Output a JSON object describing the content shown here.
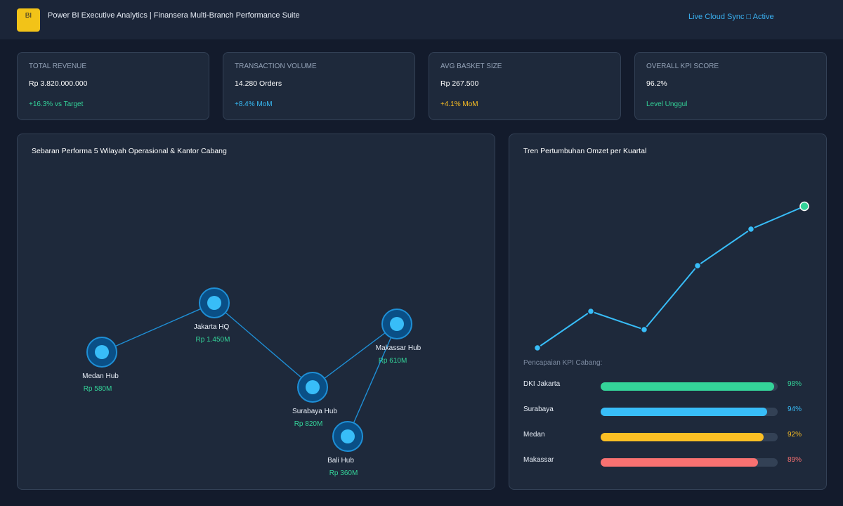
{
  "header": {
    "logo_text": "BI",
    "title": "Power BI Executive Analytics | Finansera Multi-Branch Performance Suite",
    "sync_status": "Live Cloud Sync □ Active"
  },
  "kpis": [
    {
      "label": "TOTAL REVENUE",
      "value": "Rp 3.820.000.000",
      "change": "+16.3% vs Target",
      "color": "#34d399"
    },
    {
      "label": "TRANSACTION VOLUME",
      "value": "14.280 Orders",
      "change": "+8.4% MoM",
      "color": "#38bdf8"
    },
    {
      "label": "AVG BASKET SIZE",
      "value": "Rp 267.500",
      "change": "+4.1% MoM",
      "color": "#fbbf24"
    },
    {
      "label": "OVERALL KPI SCORE",
      "value": "96.2%",
      "change": "Level Unggul",
      "color": "#34d399"
    }
  ],
  "map_panel": {
    "title": "Sebaran Performa 5 Wilayah Operasional & Kantor Cabang",
    "nodes": [
      {
        "name": "Medan Hub",
        "revenue": "Rp 580M"
      },
      {
        "name": "Jakarta HQ",
        "revenue": "Rp 1.450M"
      },
      {
        "name": "Surabaya Hub",
        "revenue": "Rp 820M"
      },
      {
        "name": "Makassar Hub",
        "revenue": "Rp 610M"
      },
      {
        "name": "Bali Hub",
        "revenue": "Rp 360M"
      }
    ]
  },
  "trend_panel": {
    "title": "Tren Pertumbuhan Omzet per Kuartal",
    "kpi_heading": "Pencapaian KPI Cabang:",
    "branches": [
      {
        "name": "DKI Jakarta",
        "pct_label": "98%",
        "fraction": 0.98,
        "color": "#34d399"
      },
      {
        "name": "Surabaya",
        "pct_label": "94%",
        "fraction": 0.94,
        "color": "#38bdf8"
      },
      {
        "name": "Medan",
        "pct_label": "92%",
        "fraction": 0.92,
        "color": "#fbbf24"
      },
      {
        "name": "Makassar",
        "pct_label": "89%",
        "fraction": 0.89,
        "color": "#f87171"
      }
    ]
  },
  "chart_data": {
    "type": "line",
    "title": "Tren Pertumbuhan Omzet per Kuartal",
    "x": [
      1,
      2,
      3,
      4,
      5,
      6
    ],
    "series": [
      {
        "values": [
          1.0,
          3.0,
          2.0,
          5.5,
          7.5,
          8.75
        ]
      }
    ],
    "ylim": [
      0,
      10
    ],
    "grid": false,
    "line_color": "#38bdf8",
    "last_point_color": "#34d399"
  }
}
